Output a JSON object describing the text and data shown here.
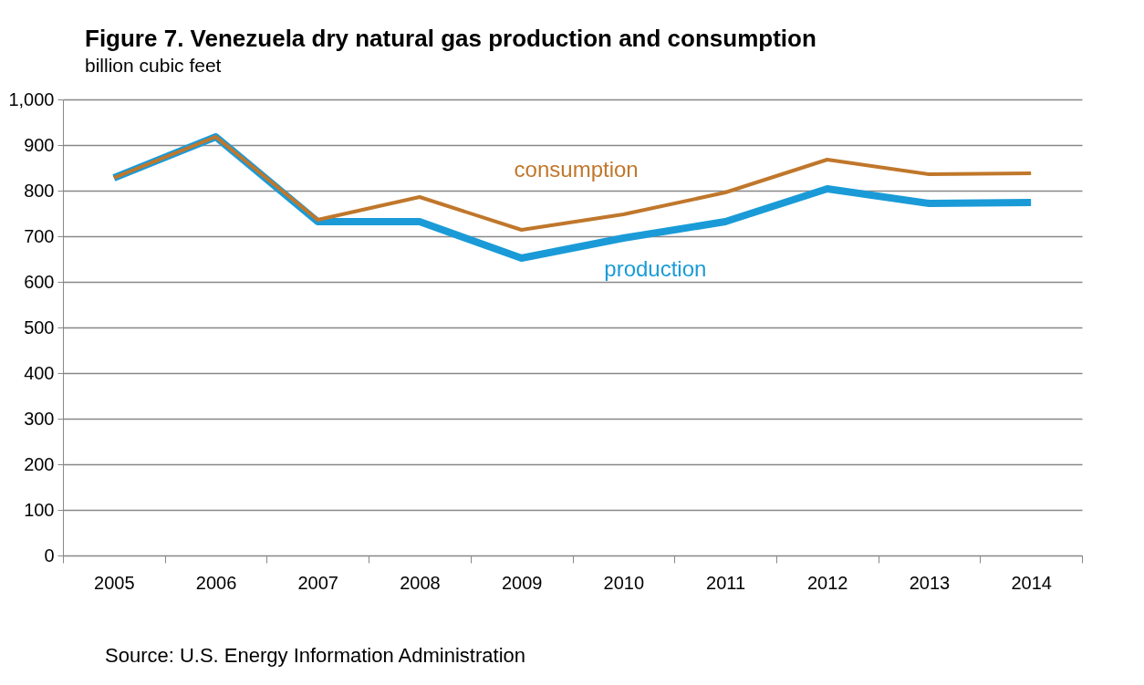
{
  "chart_data": {
    "type": "line",
    "title": "Figure 7. Venezuela dry natural gas production and consumption",
    "subtitle": "billion cubic feet",
    "categories": [
      "2005",
      "2006",
      "2007",
      "2008",
      "2009",
      "2010",
      "2011",
      "2012",
      "2013",
      "2014"
    ],
    "series": [
      {
        "name": "production",
        "color": "#1a9bd7",
        "values": [
          828,
          918,
          732,
          732,
          652,
          696,
          732,
          804,
          772,
          774
        ]
      },
      {
        "name": "consumption",
        "color": "#c0772b",
        "values": [
          828,
          918,
          736,
          786,
          714,
          748,
          796,
          868,
          836,
          838
        ]
      }
    ],
    "ylim": [
      0,
      1000
    ],
    "yticks": [
      0,
      100,
      200,
      300,
      400,
      500,
      600,
      700,
      800,
      900,
      {
        "value": 1000,
        "label": "1,000"
      }
    ],
    "grid": "y",
    "legend": false,
    "marker": "none",
    "line_style": "solid",
    "annotations": [
      "Source: U.S. Energy Information Administration"
    ]
  }
}
